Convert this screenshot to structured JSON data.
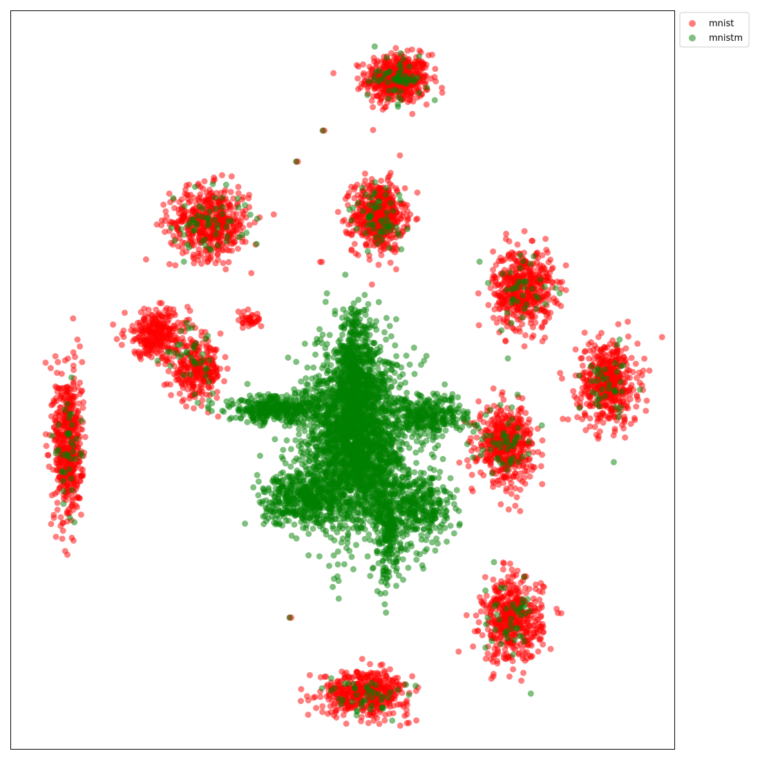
{
  "chart_data": {
    "type": "scatter",
    "title": "",
    "xlabel": "",
    "ylabel": "",
    "ticks_visible": false,
    "grid": false,
    "xlim": [
      0,
      100
    ],
    "ylim": [
      0,
      100
    ],
    "legend": {
      "position": "outside-top-right",
      "entries": [
        {
          "label": "mnist",
          "color": "#ff0000"
        },
        {
          "label": "mnistm",
          "color": "#008000"
        }
      ]
    },
    "series": [
      {
        "name": "mnist",
        "color": "#ff0000",
        "alpha": 0.5,
        "clusters": [
          {
            "cx": 58.3,
            "cy": 90.8,
            "sx": 3.2,
            "sy": 2.2,
            "n": 500
          },
          {
            "cx": 55.4,
            "cy": 72.2,
            "sx": 2.6,
            "sy": 3.2,
            "n": 500
          },
          {
            "cx": 30.0,
            "cy": 71.4,
            "sx": 4.0,
            "sy": 3.2,
            "n": 500
          },
          {
            "cx": 77.2,
            "cy": 62.4,
            "sx": 3.0,
            "sy": 3.6,
            "n": 500
          },
          {
            "cx": 90.0,
            "cy": 49.6,
            "sx": 3.0,
            "sy": 3.8,
            "n": 480
          },
          {
            "cx": 22.0,
            "cy": 56.2,
            "sx": 3.2,
            "sy": 2.2,
            "n": 300
          },
          {
            "cx": 28.0,
            "cy": 51.2,
            "sx": 2.6,
            "sy": 2.4,
            "n": 280
          },
          {
            "cx": 74.6,
            "cy": 41.2,
            "sx": 2.8,
            "sy": 3.4,
            "n": 480
          },
          {
            "cx": 75.6,
            "cy": 17.4,
            "sx": 3.0,
            "sy": 3.8,
            "n": 480
          },
          {
            "cx": 53.4,
            "cy": 7.6,
            "sx": 4.4,
            "sy": 2.0,
            "n": 480
          },
          {
            "cx": 8.6,
            "cy": 41.0,
            "sx": 1.4,
            "sy": 7.0,
            "n": 520
          },
          {
            "cx": 35.8,
            "cy": 58.2,
            "sx": 1.4,
            "sy": 0.8,
            "n": 40
          }
        ]
      },
      {
        "name": "mnistm",
        "color": "#008000",
        "alpha": 0.5,
        "clusters": [
          {
            "cx": 52.0,
            "cy": 41.6,
            "sx": 5.0,
            "sy": 8.0,
            "n": 2400
          },
          {
            "cx": 52.0,
            "cy": 51.0,
            "sx": 2.0,
            "sy": 6.0,
            "n": 500
          },
          {
            "cx": 40.0,
            "cy": 46.0,
            "sx": 5.0,
            "sy": 1.2,
            "n": 400
          },
          {
            "cx": 44.0,
            "cy": 34.0,
            "sx": 4.0,
            "sy": 2.4,
            "n": 450
          },
          {
            "cx": 63.0,
            "cy": 45.0,
            "sx": 4.0,
            "sy": 1.8,
            "n": 300
          },
          {
            "cx": 62.0,
            "cy": 33.0,
            "sx": 3.0,
            "sy": 3.5,
            "n": 300
          },
          {
            "cx": 57.0,
            "cy": 30.0,
            "sx": 1.5,
            "sy": 5.0,
            "n": 250
          },
          {
            "cx": 58.3,
            "cy": 90.8,
            "sx": 3.0,
            "sy": 2.0,
            "n": 60
          },
          {
            "cx": 55.4,
            "cy": 72.2,
            "sx": 2.4,
            "sy": 3.0,
            "n": 60
          },
          {
            "cx": 30.0,
            "cy": 71.4,
            "sx": 3.8,
            "sy": 3.0,
            "n": 60
          },
          {
            "cx": 77.2,
            "cy": 62.4,
            "sx": 2.8,
            "sy": 3.4,
            "n": 40
          },
          {
            "cx": 90.0,
            "cy": 49.6,
            "sx": 2.8,
            "sy": 3.6,
            "n": 40
          },
          {
            "cx": 74.6,
            "cy": 41.2,
            "sx": 2.6,
            "sy": 3.2,
            "n": 50
          },
          {
            "cx": 75.6,
            "cy": 17.4,
            "sx": 2.8,
            "sy": 3.6,
            "n": 45
          },
          {
            "cx": 53.4,
            "cy": 7.6,
            "sx": 4.0,
            "sy": 1.8,
            "n": 45
          },
          {
            "cx": 8.6,
            "cy": 41.0,
            "sx": 1.2,
            "sy": 6.0,
            "n": 40
          },
          {
            "cx": 27.0,
            "cy": 53.0,
            "sx": 2.8,
            "sy": 3.0,
            "n": 35
          }
        ]
      }
    ],
    "isolated_points": [
      {
        "x": 47.0,
        "y": 83.8,
        "series": "both"
      },
      {
        "x": 43.0,
        "y": 79.6,
        "series": "both"
      },
      {
        "x": 42.0,
        "y": 17.8,
        "series": "both"
      },
      {
        "x": 46.6,
        "y": 66.0,
        "series": "mnist"
      },
      {
        "x": 20.0,
        "y": 53.6,
        "series": "mnist"
      }
    ]
  }
}
